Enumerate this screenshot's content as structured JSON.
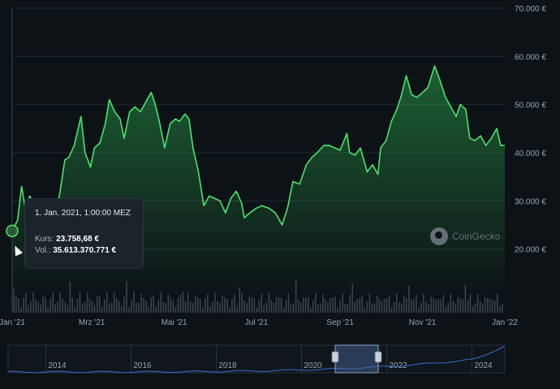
{
  "tooltip": {
    "date": "1. Jan. 2021, 1:00:00 MEZ",
    "price_label": "Kurs:",
    "price": "23.758,68 €",
    "vol_label": "Vol.:",
    "vol": "35.613.370.771 €"
  },
  "watermark": {
    "text": "CoinGecko"
  },
  "colors": {
    "line": "#4ce36b",
    "grid": "#222a33",
    "text": "#9aa3ad",
    "navigator": "#3d6bd1"
  },
  "chart_data": {
    "type": "line",
    "title": "",
    "xlabel": "",
    "ylabel": "",
    "currency": "€",
    "ylim": [
      10000,
      70000
    ],
    "y_ticks": [
      "20.000 €",
      "30.000 €",
      "40.000 €",
      "50.000 €",
      "60.000 €",
      "70.000 €"
    ],
    "y_tick_values": [
      20000,
      30000,
      40000,
      50000,
      60000,
      70000
    ],
    "x_range": [
      "2021-01-01",
      "2022-01-01"
    ],
    "x_ticks": [
      {
        "label": "Jan '21",
        "date": "2021-01-01"
      },
      {
        "label": "Mrz '21",
        "date": "2021-03-01"
      },
      {
        "label": "Mai '21",
        "date": "2021-05-01"
      },
      {
        "label": "Jul '21",
        "date": "2021-07-01"
      },
      {
        "label": "Sep '21",
        "date": "2021-09-01"
      },
      {
        "label": "Nov '21",
        "date": "2021-11-01"
      },
      {
        "label": "Jan '22",
        "date": "2022-01-01"
      }
    ],
    "series": [
      {
        "values": [
          [
            "2021-01-01",
            23759
          ],
          [
            "2021-01-05",
            26000
          ],
          [
            "2021-01-08",
            33000
          ],
          [
            "2021-01-11",
            28000
          ],
          [
            "2021-01-14",
            31000
          ],
          [
            "2021-01-18",
            29000
          ],
          [
            "2021-01-22",
            26500
          ],
          [
            "2021-01-27",
            25500
          ],
          [
            "2021-02-01",
            27500
          ],
          [
            "2021-02-05",
            31000
          ],
          [
            "2021-02-09",
            38500
          ],
          [
            "2021-02-12",
            39000
          ],
          [
            "2021-02-16",
            41500
          ],
          [
            "2021-02-21",
            47500
          ],
          [
            "2021-02-24",
            40000
          ],
          [
            "2021-02-28",
            37000
          ],
          [
            "2021-03-03",
            41000
          ],
          [
            "2021-03-07",
            42000
          ],
          [
            "2021-03-11",
            46000
          ],
          [
            "2021-03-14",
            51000
          ],
          [
            "2021-03-18",
            48500
          ],
          [
            "2021-03-22",
            47000
          ],
          [
            "2021-03-25",
            43000
          ],
          [
            "2021-03-29",
            48500
          ],
          [
            "2021-04-02",
            49500
          ],
          [
            "2021-04-06",
            48500
          ],
          [
            "2021-04-10",
            50500
          ],
          [
            "2021-04-14",
            52500
          ],
          [
            "2021-04-17",
            50000
          ],
          [
            "2021-04-20",
            46500
          ],
          [
            "2021-04-24",
            41000
          ],
          [
            "2021-04-28",
            46000
          ],
          [
            "2021-05-02",
            47000
          ],
          [
            "2021-05-05",
            46500
          ],
          [
            "2021-05-09",
            48000
          ],
          [
            "2021-05-12",
            47000
          ],
          [
            "2021-05-15",
            41000
          ],
          [
            "2021-05-19",
            36000
          ],
          [
            "2021-05-23",
            29000
          ],
          [
            "2021-05-27",
            31000
          ],
          [
            "2021-05-31",
            30500
          ],
          [
            "2021-06-04",
            30000
          ],
          [
            "2021-06-08",
            27500
          ],
          [
            "2021-06-12",
            30500
          ],
          [
            "2021-06-16",
            32000
          ],
          [
            "2021-06-20",
            29500
          ],
          [
            "2021-06-22",
            26500
          ],
          [
            "2021-06-26",
            27500
          ],
          [
            "2021-07-01",
            28500
          ],
          [
            "2021-07-05",
            29000
          ],
          [
            "2021-07-10",
            28500
          ],
          [
            "2021-07-15",
            27500
          ],
          [
            "2021-07-20",
            25000
          ],
          [
            "2021-07-24",
            28500
          ],
          [
            "2021-07-28",
            34000
          ],
          [
            "2021-08-02",
            33500
          ],
          [
            "2021-08-07",
            37500
          ],
          [
            "2021-08-11",
            39000
          ],
          [
            "2021-08-15",
            40000
          ],
          [
            "2021-08-20",
            41500
          ],
          [
            "2021-08-24",
            41500
          ],
          [
            "2021-08-28",
            41000
          ],
          [
            "2021-09-01",
            40500
          ],
          [
            "2021-09-06",
            44000
          ],
          [
            "2021-09-08",
            40000
          ],
          [
            "2021-09-12",
            39500
          ],
          [
            "2021-09-16",
            41000
          ],
          [
            "2021-09-21",
            36000
          ],
          [
            "2021-09-25",
            37500
          ],
          [
            "2021-09-29",
            35500
          ],
          [
            "2021-10-01",
            41000
          ],
          [
            "2021-10-05",
            42500
          ],
          [
            "2021-10-09",
            46500
          ],
          [
            "2021-10-13",
            49000
          ],
          [
            "2021-10-16",
            51500
          ],
          [
            "2021-10-20",
            56000
          ],
          [
            "2021-10-24",
            52000
          ],
          [
            "2021-10-28",
            51500
          ],
          [
            "2021-11-01",
            52500
          ],
          [
            "2021-11-05",
            53500
          ],
          [
            "2021-11-10",
            58000
          ],
          [
            "2021-11-14",
            55000
          ],
          [
            "2021-11-18",
            51500
          ],
          [
            "2021-11-22",
            49500
          ],
          [
            "2021-11-26",
            47500
          ],
          [
            "2021-11-29",
            50000
          ],
          [
            "2021-12-03",
            49000
          ],
          [
            "2021-12-06",
            43000
          ],
          [
            "2021-12-10",
            42500
          ],
          [
            "2021-12-14",
            43500
          ],
          [
            "2021-12-18",
            41500
          ],
          [
            "2021-12-22",
            43000
          ],
          [
            "2021-12-26",
            45000
          ],
          [
            "2021-12-29",
            41500
          ],
          [
            "2022-01-01",
            41500
          ]
        ]
      }
    ],
    "navigator": {
      "x_ticks": [
        "2014",
        "2016",
        "2018",
        "2020",
        "2022",
        "2024"
      ],
      "selected_range": [
        "2021-01-01",
        "2022-01-01"
      ]
    }
  }
}
